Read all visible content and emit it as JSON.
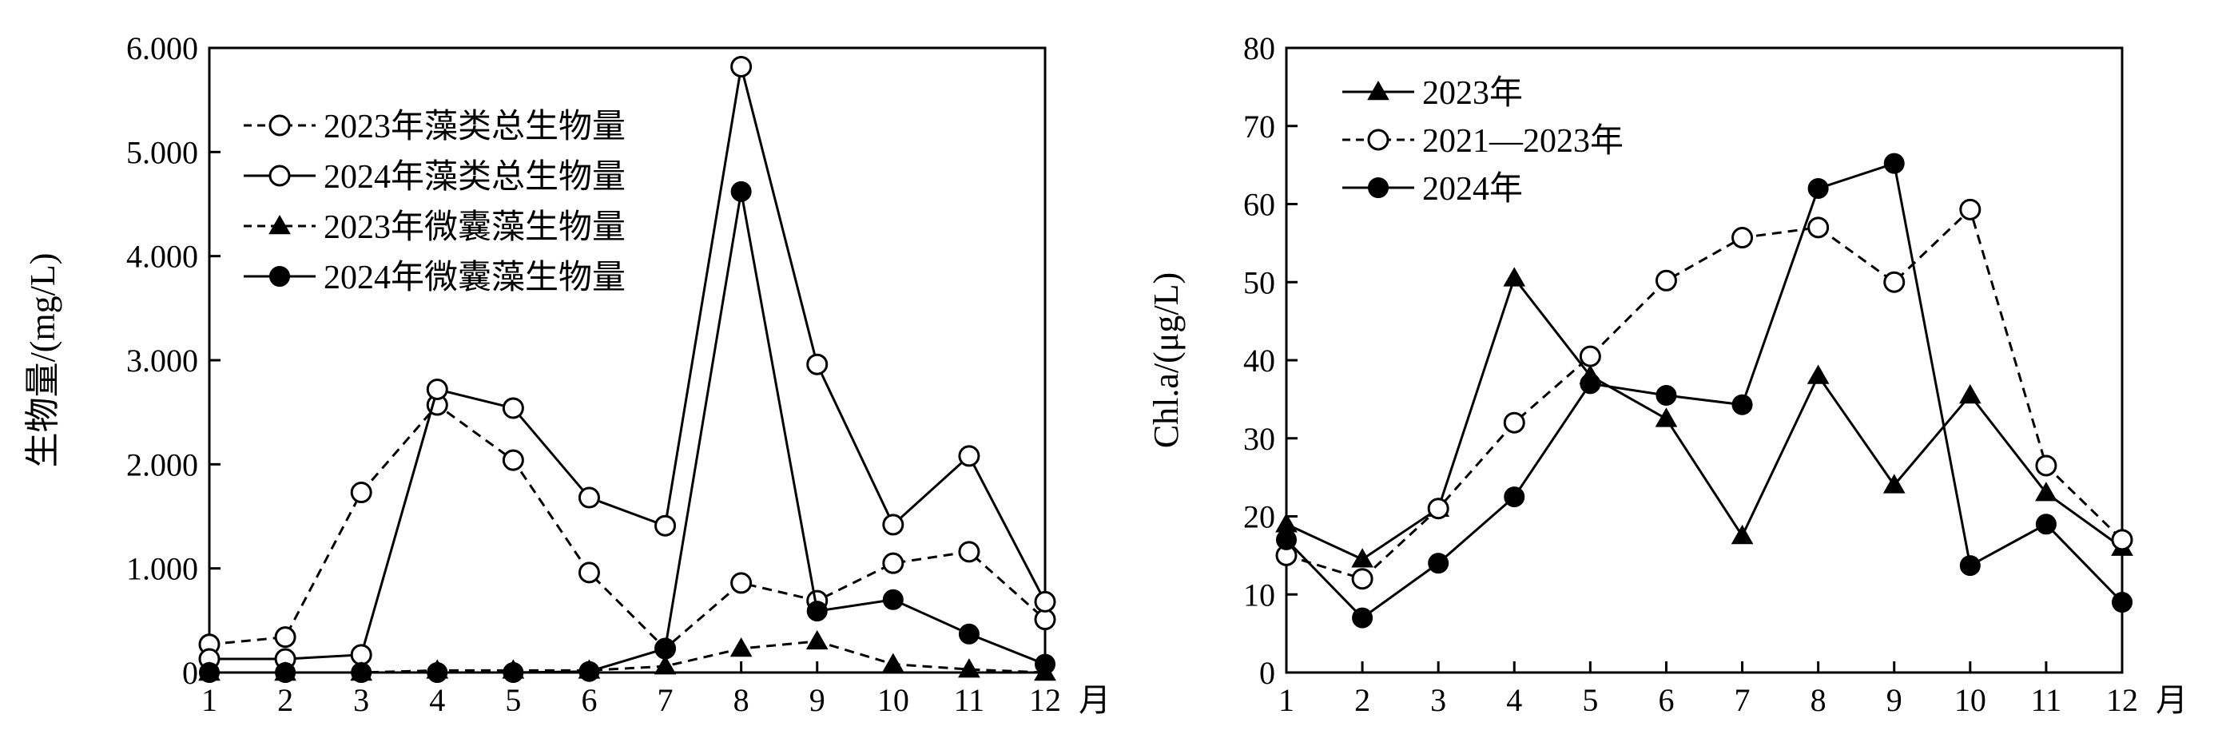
{
  "chart_data": [
    {
      "type": "line",
      "title": "",
      "xlabel": "月",
      "ylabel": "生物量/(mg/L)",
      "x": [
        1,
        2,
        3,
        4,
        5,
        6,
        7,
        8,
        9,
        10,
        11,
        12
      ],
      "xticks": [
        "1",
        "2",
        "3",
        "4",
        "5",
        "6",
        "7",
        "8",
        "9",
        "10",
        "11",
        "12"
      ],
      "ylim": [
        0,
        6
      ],
      "yticks": [
        "0",
        "1.000",
        "2.000",
        "3.000",
        "4.000",
        "5.000",
        "6.000"
      ],
      "legend_position": "top-left",
      "series": [
        {
          "name": "2023年藻类总生物量",
          "values": [
            0.27,
            0.34,
            1.73,
            2.57,
            2.04,
            0.96,
            0.23,
            0.86,
            0.69,
            1.05,
            1.16,
            0.51
          ],
          "style": "dashed",
          "marker": "open-circle"
        },
        {
          "name": "2024年藻类总生物量",
          "values": [
            0.13,
            0.13,
            0.17,
            2.72,
            2.54,
            1.68,
            1.41,
            5.82,
            2.96,
            1.42,
            2.08,
            0.68
          ],
          "style": "solid",
          "marker": "open-circle"
        },
        {
          "name": "2023年微囊藻生物量",
          "values": [
            0.0,
            0.0,
            0.0,
            0.02,
            0.02,
            0.02,
            0.06,
            0.23,
            0.3,
            0.08,
            0.03,
            0.0
          ],
          "style": "dashed",
          "marker": "filled-triangle"
        },
        {
          "name": "2024年微囊藻生物量",
          "values": [
            0.0,
            0.0,
            0.0,
            0.0,
            0.0,
            0.01,
            0.23,
            4.62,
            0.59,
            0.7,
            0.37,
            0.08
          ],
          "style": "solid",
          "marker": "filled-circle"
        }
      ]
    },
    {
      "type": "line",
      "title": "",
      "xlabel": "月",
      "ylabel": "Chl.a/(μg/L)",
      "x": [
        1,
        2,
        3,
        4,
        5,
        6,
        7,
        8,
        9,
        10,
        11,
        12
      ],
      "xticks": [
        "1",
        "2",
        "3",
        "4",
        "5",
        "6",
        "7",
        "8",
        "9",
        "10",
        "11",
        "12"
      ],
      "ylim": [
        0,
        80
      ],
      "yticks": [
        "0",
        "10",
        "20",
        "30",
        "40",
        "50",
        "60",
        "70",
        "80"
      ],
      "legend_position": "top-left",
      "series": [
        {
          "name": "2023年",
          "values": [
            19,
            14.5,
            21,
            50.5,
            38,
            32.5,
            17.5,
            38,
            24,
            35.5,
            23,
            16
          ],
          "style": "solid",
          "marker": "filled-triangle"
        },
        {
          "name": "2021—2023年",
          "values": [
            15,
            12,
            21,
            32,
            40.5,
            50.2,
            55.7,
            57,
            50,
            59.3,
            26.5,
            17
          ],
          "style": "dashed",
          "marker": "open-circle"
        },
        {
          "name": "2024年",
          "values": [
            17,
            7,
            14,
            22.5,
            37,
            35.5,
            34.3,
            62,
            65.2,
            13.7,
            19,
            9
          ],
          "style": "solid",
          "marker": "filled-circle"
        }
      ]
    }
  ]
}
